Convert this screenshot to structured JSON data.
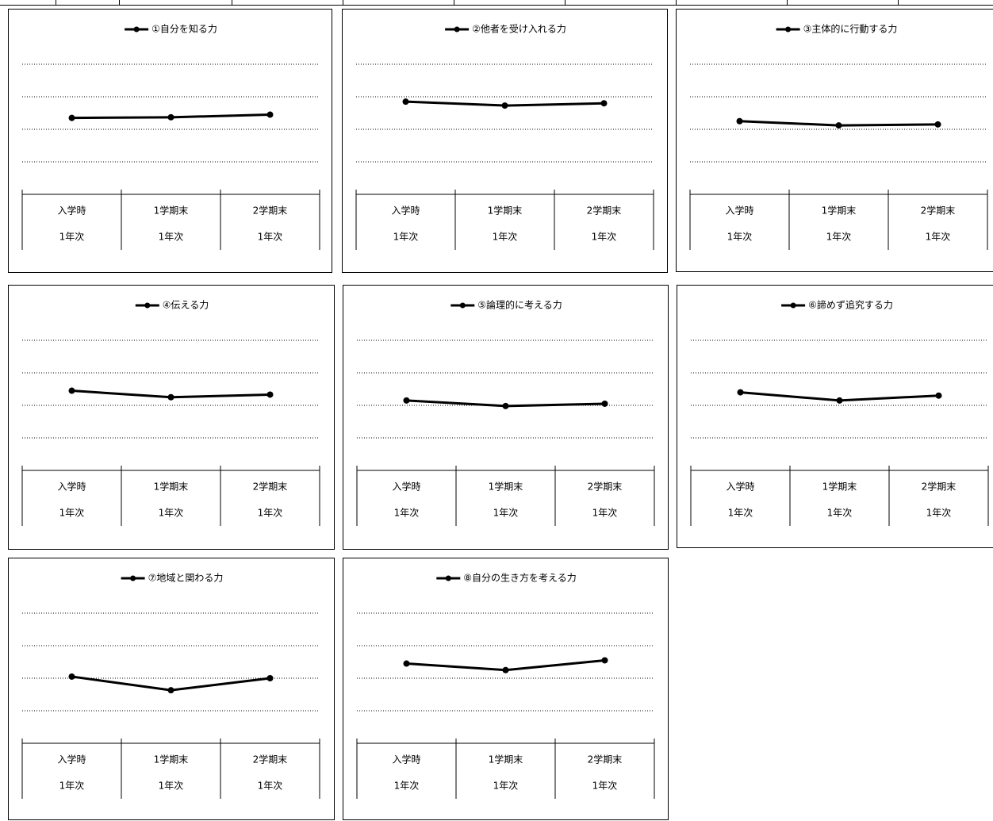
{
  "colors": {
    "line": "#000000",
    "grid": "#000000",
    "frame": "#000000"
  },
  "chart_data": [
    {
      "type": "line",
      "title": "",
      "legend": {
        "position": "top-center",
        "marker": "line-with-dot"
      },
      "grid": "dotted-horizontal",
      "categories": [
        [
          "入学時",
          "1年次"
        ],
        [
          "1学期末",
          "1年次"
        ],
        [
          "2学期末",
          "1年次"
        ]
      ],
      "series": [
        {
          "name": "①自分を知る力",
          "values": [
            2.35,
            2.37,
            2.45
          ]
        }
      ],
      "ylim": [
        0,
        4
      ]
    },
    {
      "type": "line",
      "title": "",
      "legend": {
        "position": "top-center",
        "marker": "line-with-dot"
      },
      "grid": "dotted-horizontal",
      "categories": [
        [
          "入学時",
          "1年次"
        ],
        [
          "1学期末",
          "1年次"
        ],
        [
          "2学期末",
          "1年次"
        ]
      ],
      "series": [
        {
          "name": "②他者を受け入れる力",
          "values": [
            2.85,
            2.73,
            2.8
          ]
        }
      ],
      "ylim": [
        0,
        4
      ]
    },
    {
      "type": "line",
      "title": "",
      "legend": {
        "position": "top-center",
        "marker": "line-with-dot"
      },
      "grid": "dotted-horizontal",
      "categories": [
        [
          "入学時",
          "1年次"
        ],
        [
          "1学期末",
          "1年次"
        ],
        [
          "2学期末",
          "1年次"
        ]
      ],
      "series": [
        {
          "name": "③主体的に行動する力",
          "values": [
            2.25,
            2.12,
            2.15
          ]
        }
      ],
      "ylim": [
        0,
        4
      ]
    },
    {
      "type": "line",
      "title": "",
      "legend": {
        "position": "top-center",
        "marker": "line-with-dot"
      },
      "grid": "dotted-horizontal",
      "categories": [
        [
          "入学時",
          "1年次"
        ],
        [
          "1学期末",
          "1年次"
        ],
        [
          "2学期末",
          "1年次"
        ]
      ],
      "series": [
        {
          "name": "④伝える力",
          "values": [
            2.45,
            2.25,
            2.33
          ]
        }
      ],
      "ylim": [
        0,
        4
      ]
    },
    {
      "type": "line",
      "title": "",
      "legend": {
        "position": "top-center",
        "marker": "line-with-dot"
      },
      "grid": "dotted-horizontal",
      "categories": [
        [
          "入学時",
          "1年次"
        ],
        [
          "1学期末",
          "1年次"
        ],
        [
          "2学期末",
          "1年次"
        ]
      ],
      "series": [
        {
          "name": "⑤論理的に考える力",
          "values": [
            2.15,
            1.98,
            2.05
          ]
        }
      ],
      "ylim": [
        0,
        4
      ]
    },
    {
      "type": "line",
      "title": "",
      "legend": {
        "position": "top-center",
        "marker": "line-with-dot"
      },
      "grid": "dotted-horizontal",
      "categories": [
        [
          "入学時",
          "1年次"
        ],
        [
          "1学期末",
          "1年次"
        ],
        [
          "2学期末",
          "1年次"
        ]
      ],
      "series": [
        {
          "name": "⑥諦めず追究する力",
          "values": [
            2.4,
            2.15,
            2.3
          ]
        }
      ],
      "ylim": [
        0,
        4
      ]
    },
    {
      "type": "line",
      "title": "",
      "legend": {
        "position": "top-center",
        "marker": "line-with-dot"
      },
      "grid": "dotted-horizontal",
      "categories": [
        [
          "入学時",
          "1年次"
        ],
        [
          "1学期末",
          "1年次"
        ],
        [
          "2学期末",
          "1年次"
        ]
      ],
      "series": [
        {
          "name": "⑦地域と関わる力",
          "values": [
            2.05,
            1.63,
            2.0
          ]
        }
      ],
      "ylim": [
        0,
        4
      ]
    },
    {
      "type": "line",
      "title": "",
      "legend": {
        "position": "top-center",
        "marker": "line-with-dot"
      },
      "grid": "dotted-horizontal",
      "categories": [
        [
          "入学時",
          "1年次"
        ],
        [
          "1学期末",
          "1年次"
        ],
        [
          "2学期末",
          "1年次"
        ]
      ],
      "series": [
        {
          "name": "⑧自分の生き方を考える力",
          "values": [
            2.45,
            2.25,
            2.55
          ]
        }
      ],
      "ylim": [
        0,
        4
      ]
    }
  ]
}
